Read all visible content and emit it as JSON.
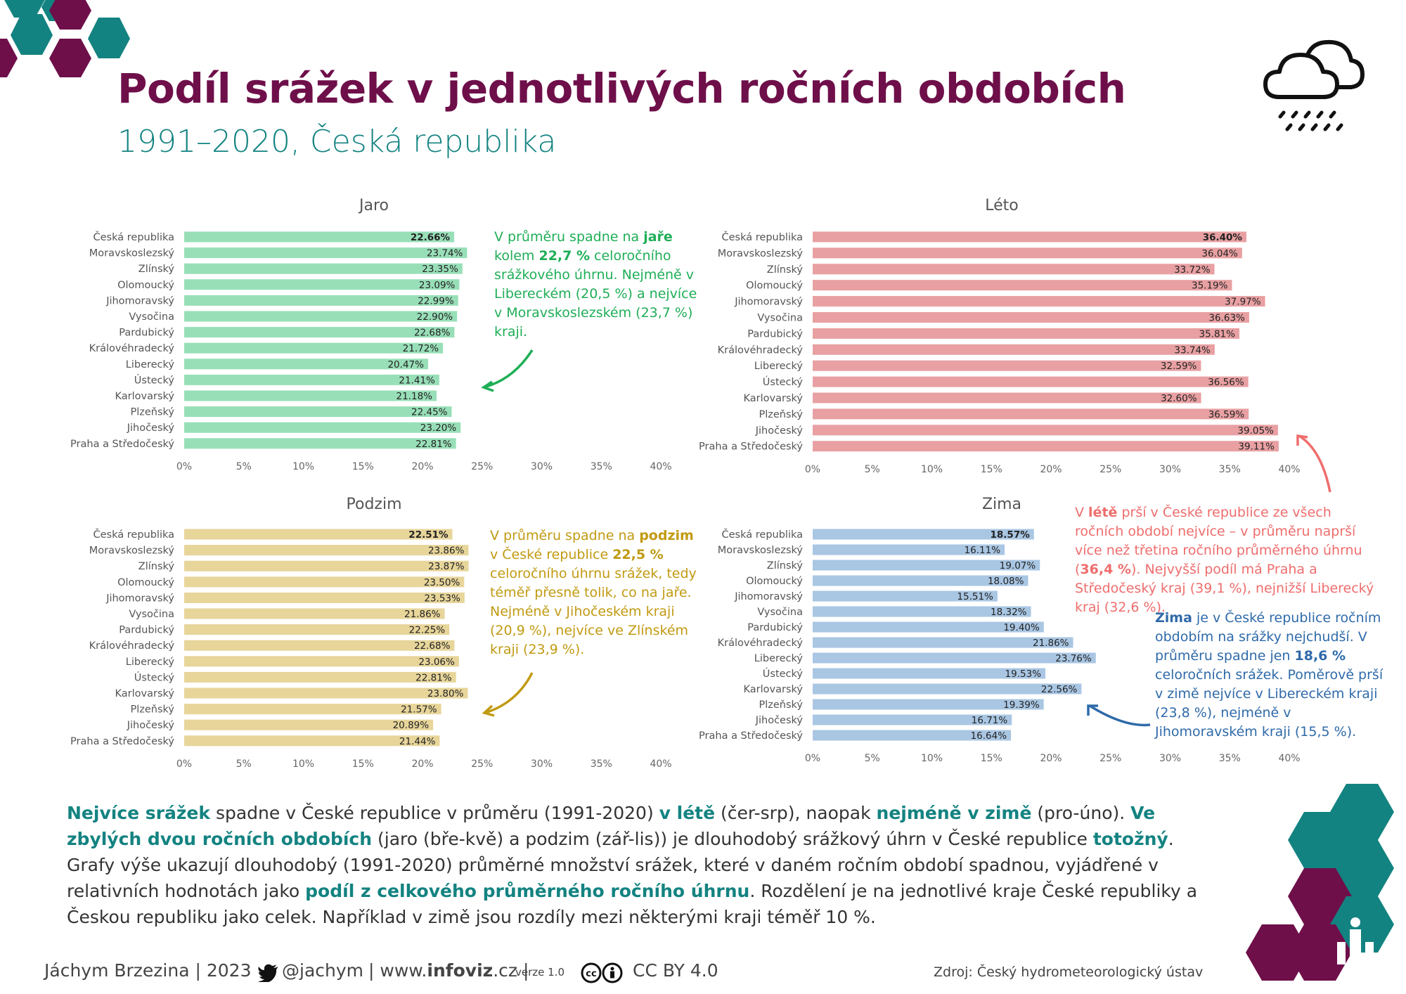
{
  "header": {
    "title": "Podíl srážek v jednotlivých ročních obdobích",
    "subtitle": "1991–2020, Česká republika"
  },
  "colors": {
    "spring": "#98dfb8",
    "summer": "#e8a0a2",
    "autumn": "#e7d59a",
    "winter": "#a9c6e3",
    "teal": "#138381",
    "purple": "#6e0f4a"
  },
  "chart_data": [
    {
      "type": "bar",
      "title": "Jaro",
      "categories": [
        "Česká republika",
        "Moravskoslezský",
        "Zlínský",
        "Olomoucký",
        "Jihomoravský",
        "Vysočina",
        "Pardubický",
        "Královéhradecký",
        "Liberecký",
        "Ústecký",
        "Karlovarský",
        "Plzeňský",
        "Jihočeský",
        "Praha a Středočeský"
      ],
      "values": [
        22.66,
        23.74,
        23.35,
        23.09,
        22.99,
        22.9,
        22.68,
        21.72,
        20.47,
        21.41,
        21.18,
        22.45,
        23.2,
        22.81
      ],
      "labels": [
        "22.66%",
        "23.74%",
        "23.35%",
        "23.09%",
        "22.99%",
        "22.90%",
        "22.68%",
        "21.72%",
        "20.47%",
        "21.41%",
        "21.18%",
        "22.45%",
        "23.20%",
        "22.81%"
      ],
      "xticks": [
        "0%",
        "5%",
        "10%",
        "15%",
        "20%",
        "25%",
        "30%",
        "35%",
        "40%"
      ],
      "xlim": [
        0,
        40
      ],
      "orientation": "horizontal"
    },
    {
      "type": "bar",
      "title": "Léto",
      "categories": [
        "Česká republika",
        "Moravskoslezský",
        "Zlínský",
        "Olomoucký",
        "Jihomoravský",
        "Vysočina",
        "Pardubický",
        "Královéhradecký",
        "Liberecký",
        "Ústecký",
        "Karlovarský",
        "Plzeňský",
        "Jihočeský",
        "Praha a Středočeský"
      ],
      "values": [
        36.4,
        36.04,
        33.72,
        35.19,
        37.97,
        36.63,
        35.81,
        33.74,
        32.59,
        36.56,
        32.6,
        36.59,
        39.05,
        39.11
      ],
      "labels": [
        "36.40%",
        "36.04%",
        "33.72%",
        "35.19%",
        "37.97%",
        "36.63%",
        "35.81%",
        "33.74%",
        "32.59%",
        "36.56%",
        "32.60%",
        "36.59%",
        "39.05%",
        "39.11%"
      ],
      "xticks": [
        "0%",
        "5%",
        "10%",
        "15%",
        "20%",
        "25%",
        "30%",
        "35%",
        "40%"
      ],
      "xlim": [
        0,
        40
      ],
      "orientation": "horizontal"
    },
    {
      "type": "bar",
      "title": "Podzim",
      "categories": [
        "Česká republika",
        "Moravskoslezský",
        "Zlínský",
        "Olomoucký",
        "Jihomoravský",
        "Vysočina",
        "Pardubický",
        "Královéhradecký",
        "Liberecký",
        "Ústecký",
        "Karlovarský",
        "Plzeňský",
        "Jihočeský",
        "Praha a Středočeský"
      ],
      "values": [
        22.51,
        23.86,
        23.87,
        23.5,
        23.53,
        21.86,
        22.25,
        22.68,
        23.06,
        22.81,
        23.8,
        21.57,
        20.89,
        21.44
      ],
      "labels": [
        "22.51%",
        "23.86%",
        "23.87%",
        "23.50%",
        "23.53%",
        "21.86%",
        "22.25%",
        "22.68%",
        "23.06%",
        "22.81%",
        "23.80%",
        "21.57%",
        "20.89%",
        "21.44%"
      ],
      "xticks": [
        "0%",
        "5%",
        "10%",
        "15%",
        "20%",
        "25%",
        "30%",
        "35%",
        "40%"
      ],
      "xlim": [
        0,
        40
      ],
      "orientation": "horizontal"
    },
    {
      "type": "bar",
      "title": "Zima",
      "categories": [
        "Česká republika",
        "Moravskoslezský",
        "Zlínský",
        "Olomoucký",
        "Jihomoravský",
        "Vysočina",
        "Pardubický",
        "Královéhradecký",
        "Liberecký",
        "Ústecký",
        "Karlovarský",
        "Plzeňský",
        "Jihočeský",
        "Praha a Středočeský"
      ],
      "values": [
        18.57,
        16.11,
        19.07,
        18.08,
        15.51,
        18.32,
        19.4,
        21.86,
        23.76,
        19.53,
        22.56,
        19.39,
        16.71,
        16.64
      ],
      "labels": [
        "18.57%",
        "16.11%",
        "19.07%",
        "18.08%",
        "15.51%",
        "18.32%",
        "19.40%",
        "21.86%",
        "23.76%",
        "19.53%",
        "22.56%",
        "19.39%",
        "16.71%",
        "16.64%"
      ],
      "xticks": [
        "0%",
        "5%",
        "10%",
        "15%",
        "20%",
        "25%",
        "30%",
        "35%",
        "40%"
      ],
      "xlim": [
        0,
        40
      ],
      "orientation": "horizontal"
    }
  ],
  "notes": {
    "spring": [
      "V průměru spadne na ",
      "jaře",
      " kolem ",
      "22,7 %",
      " celoročního srážkového úhrnu.  Nejméně v Libereckém (20,5 %) a nejvíce v Moravskoslezském (23,7 %) kraji."
    ],
    "autumn": [
      "V průměru spadne na ",
      "podzim",
      " v České republice ",
      "22,5 %",
      " celoročního úhrnu srážek, tedy téměř přesně tolik, co na jaře. Nejméně v Jihočeském kraji (20,9 %), nejvíce ve Zlínském kraji (23,9 %)."
    ],
    "summer": [
      "V ",
      "létě",
      " prší v České republice ze všech ročních období nejvíce – v průměru naprší více než třetina ročního průměrného úhrnu (",
      "36,4 %",
      "). Nejvyšší podíl má Praha a Středočeský kraj (39,1 %), nejnižší Liberecký kraj (32,6 %)."
    ],
    "winter": [
      "Zima",
      " je v České republice ročním obdobím na srážky nejchudší. V průměru spadne jen ",
      "18,6 %",
      " celoročních srážek. Poměrově prší v zimě nejvíce v Libereckém kraji (23,8 %), nejméně v Jihomoravském kraji (15,5 %)."
    ]
  },
  "summary": [
    "Nejvíce srážek",
    " spadne v České republice v průměru (1991-2020) ",
    "v létě",
    " (čer-srp), naopak ",
    "nejméně v zimě",
    " (pro-úno). ",
    "Ve zbylých dvou ročních obdobích",
    " (jaro (bře-kvě) a podzim (zář-lis)) je dlouhodobý srážkový úhrn v České republice ",
    "totožný",
    ". Grafy výše ukazují dlouhodobý (1991-2020) průměrné množství srážek, které v daném ročním období spadnou, vyjádřené v relativních hodnotách jako ",
    "podíl z celkového průměrného ročního úhrnu",
    ". Rozdělení je na jednotlivé kraje České republiky a Českou republiku jako celek. Například v zimě jsou rozdíly mezi některými kraji téměř 10 %."
  ],
  "footer": {
    "author": "Jáchym Brzezina | 2023",
    "twitter": "@jachym",
    "site_prefix": "| www.",
    "site_bold": "infoviz",
    "site_suffix": ".cz |",
    "version": "verze 1.0",
    "license": "CC BY 4.0",
    "source": "Zdroj: Český hydrometeorologický ústav"
  },
  "icons": [
    "rain-cloud-icon",
    "twitter-bird-icon",
    "cc-icon",
    "by-icon",
    "infoviz-logo-icon"
  ]
}
